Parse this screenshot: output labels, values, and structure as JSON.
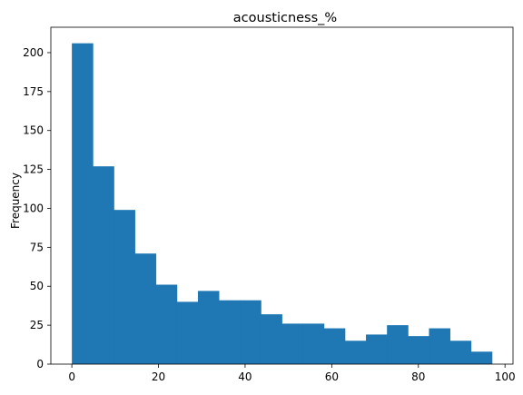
{
  "chart_data": {
    "type": "bar",
    "title": "acousticness_%",
    "xlabel": "",
    "ylabel": "Frequency",
    "xlim": [
      -4.85,
      101.85
    ],
    "ylim": [
      0,
      216.3
    ],
    "xticks": [
      0,
      20,
      40,
      60,
      80,
      100
    ],
    "yticks": [
      0,
      25,
      50,
      75,
      100,
      125,
      150,
      175,
      200
    ],
    "bin_edges": [
      0,
      4.85,
      9.7,
      14.55,
      19.4,
      24.25,
      29.1,
      33.95,
      38.8,
      43.65,
      48.5,
      53.35,
      58.2,
      63.05,
      67.9,
      72.75,
      77.6,
      82.45,
      87.3,
      92.15,
      97
    ],
    "values": [
      206,
      127,
      99,
      71,
      51,
      40,
      47,
      41,
      41,
      32,
      26,
      26,
      23,
      15,
      19,
      25,
      18,
      23,
      15,
      8
    ],
    "color": "#1f77b4",
    "grid": false
  }
}
